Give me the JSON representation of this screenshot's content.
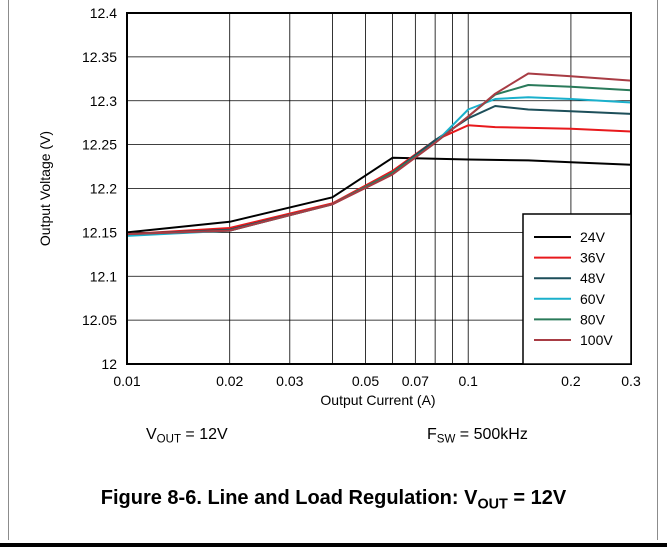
{
  "chart_data": {
    "type": "line",
    "xlabel": "Output Current (A)",
    "ylabel": "Output Voltage (V)",
    "x_scale": "log",
    "xlim": [
      0.01,
      0.3
    ],
    "ylim": [
      12,
      12.4
    ],
    "grid": true,
    "legend_position": "bottom-right",
    "x_ticks": [
      0.01,
      0.02,
      0.03,
      0.05,
      0.07,
      0.1,
      0.2,
      0.3
    ],
    "x_tick_labels": [
      "0.01",
      "0.02",
      "0.03",
      "0.05",
      "0.07",
      "0.1",
      "0.2",
      "0.3"
    ],
    "x_gridlines": [
      0.01,
      0.02,
      0.03,
      0.04,
      0.05,
      0.06,
      0.07,
      0.08,
      0.09,
      0.1,
      0.2,
      0.3
    ],
    "y_ticks": [
      12,
      12.05,
      12.1,
      12.15,
      12.2,
      12.25,
      12.3,
      12.35,
      12.4
    ],
    "y_tick_labels": [
      "12",
      "12.05",
      "12.1",
      "12.15",
      "12.2",
      "12.25",
      "12.3",
      "12.35",
      "12.4"
    ],
    "series": [
      {
        "name": "24V",
        "color": "#000000",
        "x": [
          0.01,
          0.02,
          0.04,
          0.06,
          0.1,
          0.15,
          0.2,
          0.3
        ],
        "y": [
          12.15,
          12.162,
          12.19,
          12.235,
          12.233,
          12.232,
          12.23,
          12.227
        ]
      },
      {
        "name": "36V",
        "color": "#e8191c",
        "x": [
          0.01,
          0.02,
          0.04,
          0.06,
          0.08,
          0.1,
          0.12,
          0.2,
          0.3
        ],
        "y": [
          12.148,
          12.155,
          12.183,
          12.22,
          12.255,
          12.272,
          12.27,
          12.268,
          12.265
        ]
      },
      {
        "name": "48V",
        "color": "#1d4f5a",
        "x": [
          0.01,
          0.02,
          0.04,
          0.06,
          0.08,
          0.1,
          0.12,
          0.15,
          0.2,
          0.3
        ],
        "y": [
          12.148,
          12.153,
          12.182,
          12.218,
          12.255,
          12.28,
          12.294,
          12.29,
          12.288,
          12.285
        ]
      },
      {
        "name": "60V",
        "color": "#1ab0cc",
        "x": [
          0.01,
          0.02,
          0.04,
          0.06,
          0.08,
          0.1,
          0.12,
          0.15,
          0.2,
          0.3
        ],
        "y": [
          12.146,
          12.152,
          12.182,
          12.218,
          12.252,
          12.29,
          12.302,
          12.304,
          12.302,
          12.298
        ]
      },
      {
        "name": "80V",
        "color": "#2a7a5a",
        "x": [
          0.01,
          0.02,
          0.04,
          0.06,
          0.08,
          0.1,
          0.12,
          0.15,
          0.2,
          0.3
        ],
        "y": [
          12.148,
          12.152,
          12.182,
          12.218,
          12.252,
          12.282,
          12.307,
          12.318,
          12.316,
          12.312
        ]
      },
      {
        "name": "100V",
        "color": "#a83c44",
        "x": [
          0.01,
          0.02,
          0.04,
          0.06,
          0.08,
          0.1,
          0.12,
          0.15,
          0.2,
          0.3
        ],
        "y": [
          12.148,
          12.152,
          12.182,
          12.216,
          12.252,
          12.282,
          12.308,
          12.331,
          12.328,
          12.323
        ]
      }
    ]
  },
  "conditions": {
    "vout_main": "V",
    "vout_sub": "OUT",
    "vout_value": " = 12V",
    "fsw_main": "F",
    "fsw_sub": "SW",
    "fsw_value": " = 500kHz"
  },
  "caption": {
    "prefix": "Figure 8-6. Line and Load Regulation: V",
    "sub": "OUT",
    "suffix": " = 12V"
  }
}
